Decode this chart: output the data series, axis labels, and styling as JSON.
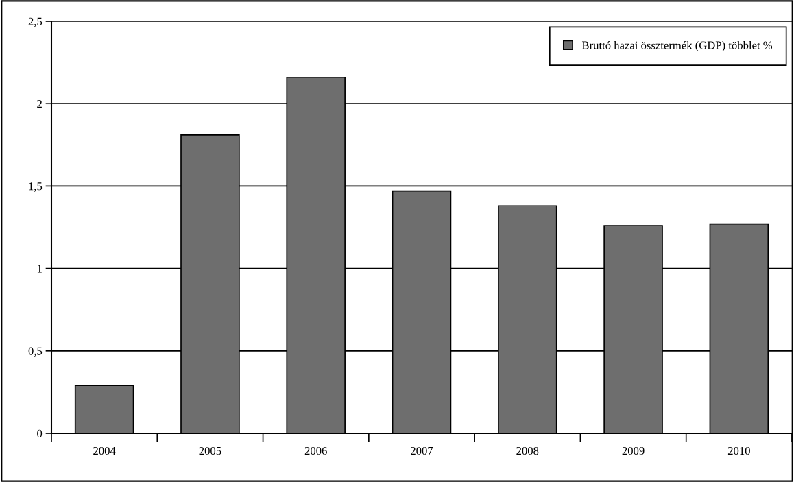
{
  "chart_data": {
    "type": "bar",
    "categories": [
      "2004",
      "2005",
      "2006",
      "2007",
      "2008",
      "2009",
      "2010"
    ],
    "series": [
      {
        "name": "Bruttó hazai össztermék (GDP) többlet %",
        "color": "#6e6e6e",
        "values": [
          0.29,
          1.81,
          2.16,
          1.47,
          1.38,
          1.26,
          1.27
        ]
      }
    ],
    "ylim": [
      0,
      2.5
    ],
    "yticks": [
      0,
      {
        "value": 0.5,
        "label": "0,5"
      },
      1,
      {
        "value": 1.5,
        "label": "1,5"
      },
      2,
      {
        "value": 2.5,
        "label": "2,5"
      }
    ],
    "grid": "y",
    "legend": "top right"
  }
}
